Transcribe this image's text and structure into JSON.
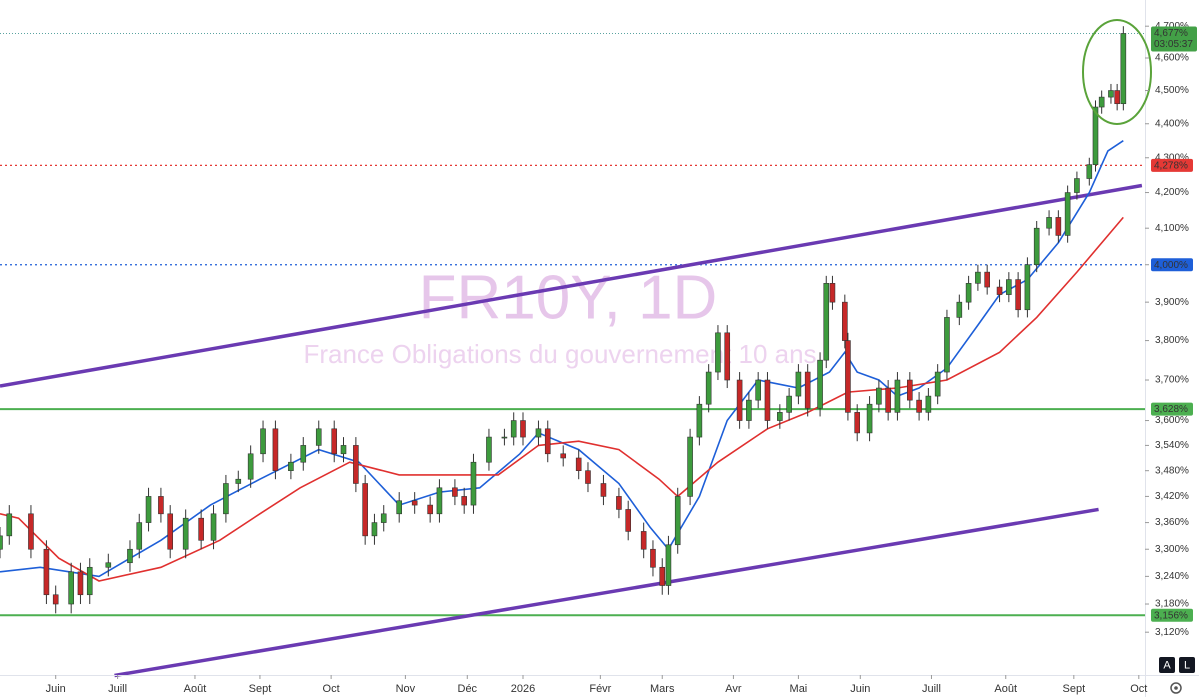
{
  "chart_data": {
    "type": "candlestick",
    "watermark": "FR10Y, 1D",
    "subtitle": "France Obligations du gouvernement 10 ans",
    "log_scale": true,
    "xlim": [
      0,
      370
    ],
    "ylim": [
      3.031,
      4.784
    ],
    "xticks": [
      {
        "value": 18,
        "label": "Juin"
      },
      {
        "value": 38,
        "label": "Juill"
      },
      {
        "value": 63,
        "label": "Août"
      },
      {
        "value": 84,
        "label": "Sept"
      },
      {
        "value": 107,
        "label": "Oct"
      },
      {
        "value": 131,
        "label": "Nov"
      },
      {
        "value": 151,
        "label": "Déc"
      },
      {
        "value": 169,
        "label": "2026"
      },
      {
        "value": 194,
        "label": "Févr"
      },
      {
        "value": 214,
        "label": "Mars"
      },
      {
        "value": 237,
        "label": "Avr"
      },
      {
        "value": 258,
        "label": "Mai"
      },
      {
        "value": 278,
        "label": "Juin"
      },
      {
        "value": 301,
        "label": "Juill"
      },
      {
        "value": 325,
        "label": "Août"
      },
      {
        "value": 347,
        "label": "Sept"
      },
      {
        "value": 368,
        "label": "Oct"
      }
    ],
    "yticks": [
      {
        "value": 4.7,
        "label": "4,700%"
      },
      {
        "value": 4.6,
        "label": "4,600%"
      },
      {
        "value": 4.5,
        "label": "4,500%"
      },
      {
        "value": 4.4,
        "label": "4,400%"
      },
      {
        "value": 4.3,
        "label": "4,300%"
      },
      {
        "value": 4.2,
        "label": "4,200%"
      },
      {
        "value": 4.1,
        "label": "4,100%"
      },
      {
        "value": 4.0,
        "label": "4,000%"
      },
      {
        "value": 3.9,
        "label": "3,900%"
      },
      {
        "value": 3.8,
        "label": "3,800%"
      },
      {
        "value": 3.7,
        "label": "3,700%"
      },
      {
        "value": 3.6,
        "label": "3,600%"
      },
      {
        "value": 3.54,
        "label": "3,540%"
      },
      {
        "value": 3.48,
        "label": "3,480%"
      },
      {
        "value": 3.42,
        "label": "3,420%"
      },
      {
        "value": 3.36,
        "label": "3,360%"
      },
      {
        "value": 3.3,
        "label": "3,300%"
      },
      {
        "value": 3.24,
        "label": "3,240%"
      },
      {
        "value": 3.18,
        "label": "3,180%"
      },
      {
        "value": 3.12,
        "label": "3,120%"
      }
    ],
    "up_color": "#3d9b3d",
    "down_color": "#c62828",
    "x": [
      0,
      3,
      10,
      15,
      18,
      23,
      26,
      29,
      35,
      42,
      45,
      48,
      52,
      55,
      60,
      65,
      69,
      73,
      77,
      81,
      85,
      89,
      94,
      98,
      103,
      108,
      111,
      115,
      118,
      121,
      124,
      129,
      134,
      139,
      142,
      147,
      150,
      153,
      158,
      163,
      166,
      169,
      174,
      177,
      182,
      187,
      190,
      195,
      200,
      203,
      208,
      211,
      214,
      216,
      219,
      223,
      226,
      229,
      232,
      235,
      239,
      242,
      245,
      248,
      252,
      255,
      258,
      261,
      265,
      267,
      269,
      273,
      274,
      277,
      281,
      284,
      287,
      290,
      294,
      297,
      300,
      303,
      306,
      310,
      313,
      316,
      319,
      323,
      326,
      329,
      332,
      335,
      339,
      342,
      345,
      348,
      352,
      354,
      356,
      359,
      361,
      363
    ],
    "open": [
      3.3,
      3.33,
      3.38,
      3.3,
      3.2,
      3.18,
      3.25,
      3.2,
      3.26,
      3.27,
      3.3,
      3.36,
      3.42,
      3.38,
      3.3,
      3.37,
      3.32,
      3.38,
      3.45,
      3.46,
      3.52,
      3.58,
      3.48,
      3.5,
      3.54,
      3.58,
      3.52,
      3.54,
      3.45,
      3.33,
      3.36,
      3.38,
      3.41,
      3.4,
      3.38,
      3.44,
      3.42,
      3.4,
      3.5,
      3.56,
      3.56,
      3.6,
      3.56,
      3.58,
      3.52,
      3.51,
      3.48,
      3.45,
      3.42,
      3.39,
      3.34,
      3.3,
      3.26,
      3.22,
      3.31,
      3.42,
      3.56,
      3.64,
      3.72,
      3.82,
      3.7,
      3.6,
      3.65,
      3.7,
      3.6,
      3.62,
      3.66,
      3.72,
      3.63,
      3.75,
      3.95,
      3.9,
      3.8,
      3.62,
      3.57,
      3.64,
      3.68,
      3.62,
      3.7,
      3.65,
      3.62,
      3.66,
      3.72,
      3.86,
      3.9,
      3.95,
      3.98,
      3.94,
      3.92,
      3.96,
      3.88,
      4.0,
      4.1,
      4.13,
      4.08,
      4.2,
      4.24,
      4.28,
      4.45,
      4.48,
      4.5,
      4.46
    ],
    "high": [
      3.35,
      3.4,
      3.4,
      3.32,
      3.22,
      3.27,
      3.27,
      3.28,
      3.29,
      3.32,
      3.38,
      3.44,
      3.44,
      3.4,
      3.39,
      3.39,
      3.4,
      3.47,
      3.48,
      3.54,
      3.6,
      3.6,
      3.52,
      3.56,
      3.6,
      3.6,
      3.56,
      3.56,
      3.47,
      3.38,
      3.4,
      3.43,
      3.43,
      3.42,
      3.46,
      3.46,
      3.44,
      3.52,
      3.58,
      3.58,
      3.62,
      3.62,
      3.6,
      3.6,
      3.54,
      3.53,
      3.5,
      3.47,
      3.44,
      3.41,
      3.36,
      3.32,
      3.28,
      3.33,
      3.44,
      3.58,
      3.66,
      3.74,
      3.84,
      3.84,
      3.72,
      3.67,
      3.72,
      3.72,
      3.64,
      3.68,
      3.74,
      3.74,
      3.77,
      3.97,
      3.97,
      3.92,
      3.82,
      3.64,
      3.66,
      3.7,
      3.7,
      3.72,
      3.72,
      3.67,
      3.68,
      3.74,
      3.88,
      3.92,
      3.97,
      4.0,
      4.0,
      3.96,
      3.98,
      3.98,
      4.02,
      4.12,
      4.15,
      4.15,
      4.22,
      4.26,
      4.3,
      4.47,
      4.5,
      4.52,
      4.52,
      4.7
    ],
    "low": [
      3.28,
      3.31,
      3.28,
      3.18,
      3.16,
      3.16,
      3.18,
      3.18,
      3.24,
      3.25,
      3.28,
      3.34,
      3.36,
      3.28,
      3.28,
      3.3,
      3.3,
      3.36,
      3.43,
      3.44,
      3.5,
      3.46,
      3.46,
      3.48,
      3.52,
      3.5,
      3.5,
      3.43,
      3.31,
      3.31,
      3.34,
      3.36,
      3.38,
      3.36,
      3.36,
      3.4,
      3.38,
      3.38,
      3.48,
      3.54,
      3.54,
      3.54,
      3.54,
      3.5,
      3.49,
      3.46,
      3.43,
      3.4,
      3.37,
      3.32,
      3.28,
      3.24,
      3.2,
      3.2,
      3.29,
      3.4,
      3.54,
      3.62,
      3.7,
      3.68,
      3.58,
      3.58,
      3.63,
      3.58,
      3.58,
      3.6,
      3.64,
      3.61,
      3.61,
      3.73,
      3.88,
      3.78,
      3.6,
      3.55,
      3.55,
      3.62,
      3.6,
      3.6,
      3.63,
      3.6,
      3.6,
      3.64,
      3.7,
      3.84,
      3.88,
      3.93,
      3.92,
      3.9,
      3.9,
      3.86,
      3.86,
      3.98,
      4.08,
      4.06,
      4.06,
      4.18,
      4.22,
      4.26,
      4.43,
      4.46,
      4.44,
      4.44
    ],
    "close": [
      3.33,
      3.38,
      3.3,
      3.2,
      3.18,
      3.25,
      3.2,
      3.26,
      3.27,
      3.3,
      3.36,
      3.42,
      3.38,
      3.3,
      3.37,
      3.32,
      3.38,
      3.45,
      3.46,
      3.52,
      3.58,
      3.48,
      3.5,
      3.54,
      3.58,
      3.52,
      3.54,
      3.45,
      3.33,
      3.36,
      3.38,
      3.41,
      3.4,
      3.38,
      3.44,
      3.42,
      3.4,
      3.5,
      3.56,
      3.56,
      3.6,
      3.56,
      3.58,
      3.52,
      3.51,
      3.48,
      3.45,
      3.42,
      3.39,
      3.34,
      3.3,
      3.26,
      3.22,
      3.31,
      3.42,
      3.56,
      3.64,
      3.72,
      3.82,
      3.7,
      3.6,
      3.65,
      3.7,
      3.6,
      3.62,
      3.66,
      3.72,
      3.63,
      3.75,
      3.95,
      3.9,
      3.8,
      3.62,
      3.57,
      3.64,
      3.68,
      3.62,
      3.7,
      3.65,
      3.62,
      3.66,
      3.72,
      3.86,
      3.9,
      3.95,
      3.98,
      3.94,
      3.92,
      3.96,
      3.88,
      4.0,
      4.1,
      4.13,
      4.08,
      4.2,
      4.24,
      4.28,
      4.45,
      4.48,
      4.5,
      4.46,
      4.677
    ],
    "moving_averages": [
      {
        "color": "#1e5fd8",
        "x": [
          0,
          13,
          32,
          52,
          68,
          84,
          103,
          116,
          129,
          142,
          155,
          168,
          174,
          187,
          200,
          210,
          216,
          226,
          235,
          245,
          258,
          268,
          273,
          277,
          284,
          290,
          297,
          306,
          316,
          323,
          332,
          342,
          352,
          358,
          363
        ],
        "values": [
          3.25,
          3.26,
          3.24,
          3.32,
          3.4,
          3.46,
          3.53,
          3.5,
          3.4,
          3.43,
          3.44,
          3.52,
          3.57,
          3.53,
          3.45,
          3.35,
          3.3,
          3.42,
          3.6,
          3.7,
          3.68,
          3.72,
          3.77,
          3.72,
          3.7,
          3.66,
          3.68,
          3.73,
          3.84,
          3.92,
          3.96,
          4.06,
          4.2,
          4.32,
          4.35
        ]
      },
      {
        "color": "#e0302f",
        "x": [
          0,
          6,
          19,
          32,
          52,
          71,
          84,
          97,
          113,
          129,
          142,
          161,
          174,
          187,
          200,
          213,
          219,
          232,
          248,
          261,
          274,
          290,
          306,
          323,
          335,
          348,
          363
        ],
        "values": [
          3.38,
          3.37,
          3.28,
          3.23,
          3.26,
          3.32,
          3.38,
          3.44,
          3.5,
          3.47,
          3.47,
          3.47,
          3.54,
          3.55,
          3.53,
          3.46,
          3.42,
          3.5,
          3.58,
          3.62,
          3.67,
          3.68,
          3.7,
          3.77,
          3.86,
          3.98,
          4.13
        ]
      }
    ],
    "trendlines": [
      {
        "color": "#6a3ab2",
        "x": [
          0,
          369
        ],
        "values": [
          3.685,
          4.22
        ]
      },
      {
        "color": "#6a3ab2",
        "x": [
          37,
          355
        ],
        "values": [
          3.03,
          3.39
        ]
      }
    ],
    "levels": [
      {
        "value": 4.278,
        "label": "4,278%",
        "color": "#e53935",
        "style": "dotted"
      },
      {
        "value": 4.0,
        "label": "4,000%",
        "color": "#1e5fd8",
        "style": "dotted"
      },
      {
        "value": 3.628,
        "label": "3,628%",
        "color": "#4caf50",
        "style": "solid"
      },
      {
        "value": 3.156,
        "label": "3,156%",
        "color": "#4caf50",
        "style": "solid"
      }
    ],
    "last_price": {
      "value": 4.677,
      "label": "4,677%",
      "countdown": "03:05:37",
      "color": "#43a047"
    },
    "buttons": [
      "A",
      "L"
    ]
  }
}
